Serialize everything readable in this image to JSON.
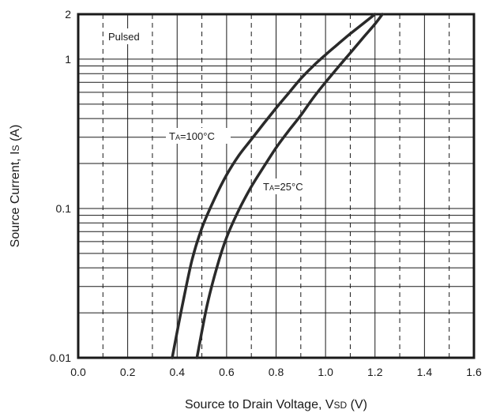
{
  "chart_data": {
    "type": "line",
    "xlabel": "Source to Drain Voltage, VSD (V)",
    "xlabel_main": "Source to Drain Voltage, V",
    "xlabel_sub": "SD",
    "xlabel_unit": " (V)",
    "ylabel": "Source Current, IS (A)",
    "ylabel_main": "Source Current, I",
    "ylabel_sub": "S",
    "ylabel_unit": " (A)",
    "xlim": [
      0.0,
      1.6
    ],
    "ylim": [
      0.01,
      2
    ],
    "yscale": "log",
    "grid": true,
    "x_ticks": [
      0.0,
      0.2,
      0.4,
      0.6,
      0.8,
      1.0,
      1.2,
      1.4,
      1.6
    ],
    "x_tick_labels": [
      "0.0",
      "0.2",
      "0.4",
      "0.6",
      "0.8",
      "1.0",
      "1.2",
      "1.4",
      "1.6"
    ],
    "x_minor_ticks": [
      0.1,
      0.3,
      0.5,
      0.7,
      0.9,
      1.1,
      1.3,
      1.5
    ],
    "y_ticks": [
      0.01,
      0.1,
      1,
      2
    ],
    "y_tick_labels": [
      "0.01",
      "0.1",
      "1",
      "2"
    ],
    "annotations": [
      {
        "text": "Pulsed"
      }
    ],
    "series": [
      {
        "label_main": "T",
        "label_sub": "A",
        "label_rest": "=100°C",
        "x": [
          0.38,
          0.42,
          0.46,
          0.5,
          0.55,
          0.6,
          0.65,
          0.7,
          0.75,
          0.8,
          0.85,
          0.9,
          0.95,
          1.0,
          1.05,
          1.1,
          1.15,
          1.2
        ],
        "y": [
          0.01,
          0.022,
          0.045,
          0.074,
          0.115,
          0.168,
          0.227,
          0.29,
          0.37,
          0.47,
          0.59,
          0.74,
          0.9,
          1.07,
          1.26,
          1.48,
          1.72,
          2.0
        ]
      },
      {
        "label_main": "T",
        "label_sub": "A",
        "label_rest": "=25°C",
        "x": [
          0.48,
          0.52,
          0.56,
          0.6,
          0.65,
          0.7,
          0.75,
          0.8,
          0.85,
          0.9,
          0.95,
          1.0,
          1.05,
          1.1,
          1.15,
          1.2,
          1.23
        ],
        "y": [
          0.01,
          0.022,
          0.04,
          0.064,
          0.098,
          0.14,
          0.19,
          0.255,
          0.33,
          0.42,
          0.55,
          0.7,
          0.88,
          1.1,
          1.38,
          1.72,
          2.0
        ]
      }
    ]
  }
}
